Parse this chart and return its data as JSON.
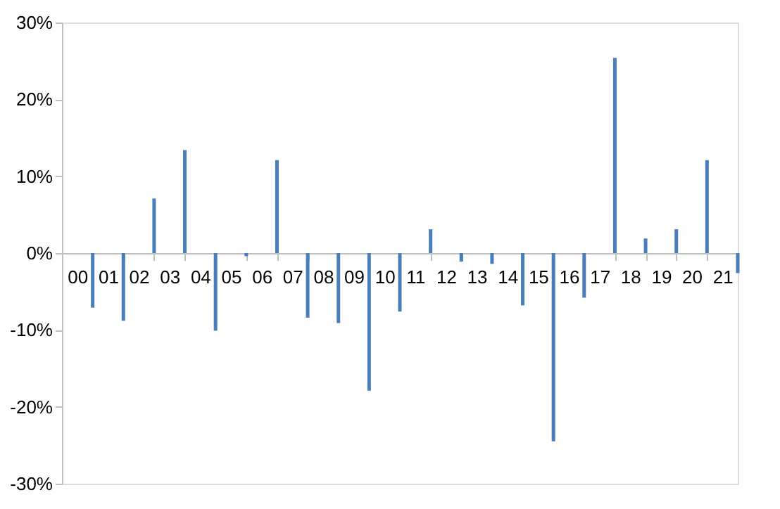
{
  "chart_data": {
    "type": "bar",
    "categories": [
      "00",
      "01",
      "02",
      "03",
      "04",
      "05",
      "06",
      "07",
      "08",
      "09",
      "10",
      "11",
      "12",
      "13",
      "14",
      "15",
      "16",
      "17",
      "18",
      "19",
      "20",
      "21"
    ],
    "values": [
      -7.1,
      -8.8,
      7.1,
      13.4,
      -10.1,
      -0.4,
      12.1,
      -8.4,
      -9.1,
      -17.9,
      -7.6,
      3.1,
      -1.1,
      -1.4,
      -6.8,
      -24.5,
      -5.8,
      25.4,
      1.9,
      3.1,
      12.1,
      -2.6
    ],
    "color": "#4a7ebb",
    "ylim": [
      -30,
      30
    ],
    "yticks": [
      {
        "value": -30,
        "label": "-30%"
      },
      {
        "value": -20,
        "label": "-20%"
      },
      {
        "value": -10,
        "label": "-10%"
      },
      {
        "value": 0,
        "label": "0%"
      },
      {
        "value": 10,
        "label": "10%"
      },
      {
        "value": 20,
        "label": "20%"
      },
      {
        "value": 30,
        "label": "30%"
      }
    ],
    "grid": false
  }
}
